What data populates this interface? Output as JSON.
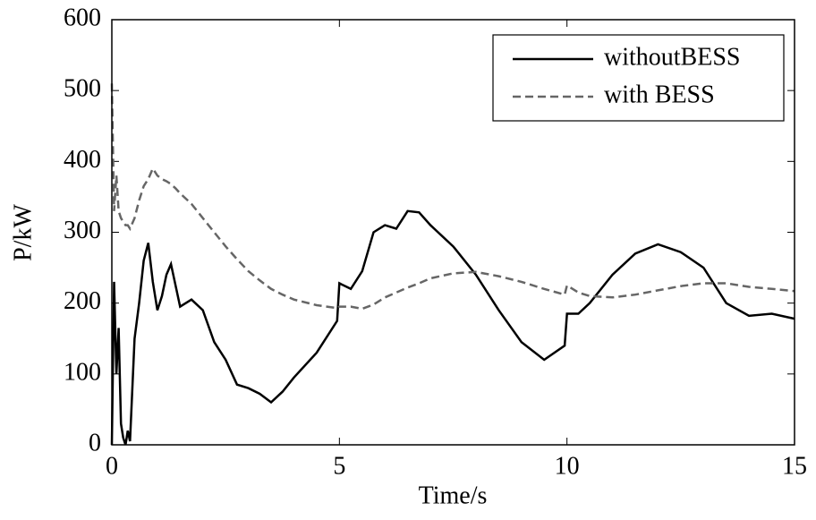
{
  "chart_data": {
    "type": "line",
    "xlabel": "Time/s",
    "ylabel": "P/kW",
    "x": [
      0,
      0.05,
      0.1,
      0.15,
      0.2,
      0.25,
      0.3,
      0.35,
      0.4,
      0.5,
      0.6,
      0.7,
      0.8,
      0.9,
      1.0,
      1.1,
      1.2,
      1.3,
      1.4,
      1.5,
      1.75,
      2.0,
      2.25,
      2.5,
      2.75,
      3.0,
      3.25,
      3.5,
      3.75,
      4.0,
      4.5,
      4.95,
      5.0,
      5.25,
      5.5,
      5.75,
      6.0,
      6.25,
      6.5,
      6.75,
      7.0,
      7.5,
      8.0,
      8.5,
      9.0,
      9.5,
      9.95,
      10.0,
      10.25,
      10.5,
      11.0,
      11.5,
      12.0,
      12.5,
      13.0,
      13.5,
      14.0,
      14.5,
      15.0
    ],
    "series": [
      {
        "name": "withoutBESS",
        "color": "#000000",
        "dash": "solid",
        "values": [
          0,
          230,
          100,
          165,
          30,
          10,
          0,
          20,
          5,
          150,
          200,
          260,
          285,
          230,
          190,
          210,
          240,
          255,
          225,
          195,
          205,
          190,
          145,
          120,
          85,
          80,
          72,
          60,
          75,
          95,
          130,
          175,
          228,
          220,
          245,
          300,
          310,
          305,
          330,
          328,
          310,
          280,
          240,
          190,
          145,
          120,
          140,
          185,
          185,
          200,
          240,
          270,
          283,
          272,
          250,
          200,
          182,
          185,
          178
        ]
      },
      {
        "name": "with BESS",
        "color": "#666666",
        "dash": "dashed",
        "values": [
          510,
          330,
          380,
          330,
          320,
          315,
          310,
          310,
          305,
          320,
          345,
          365,
          375,
          390,
          380,
          375,
          372,
          368,
          362,
          355,
          340,
          320,
          300,
          280,
          262,
          245,
          232,
          220,
          212,
          205,
          197,
          193,
          195,
          195,
          192,
          198,
          208,
          215,
          222,
          228,
          235,
          242,
          244,
          238,
          230,
          220,
          212,
          225,
          215,
          210,
          208,
          212,
          218,
          224,
          228,
          228,
          223,
          220,
          217
        ]
      }
    ],
    "xlim": [
      0,
      15
    ],
    "xticks": [
      0,
      5,
      10,
      15
    ],
    "ylim": [
      0,
      600
    ],
    "yticks": [
      0,
      100,
      200,
      300,
      400,
      500,
      600
    ],
    "grid": false,
    "legend": "upper right"
  }
}
